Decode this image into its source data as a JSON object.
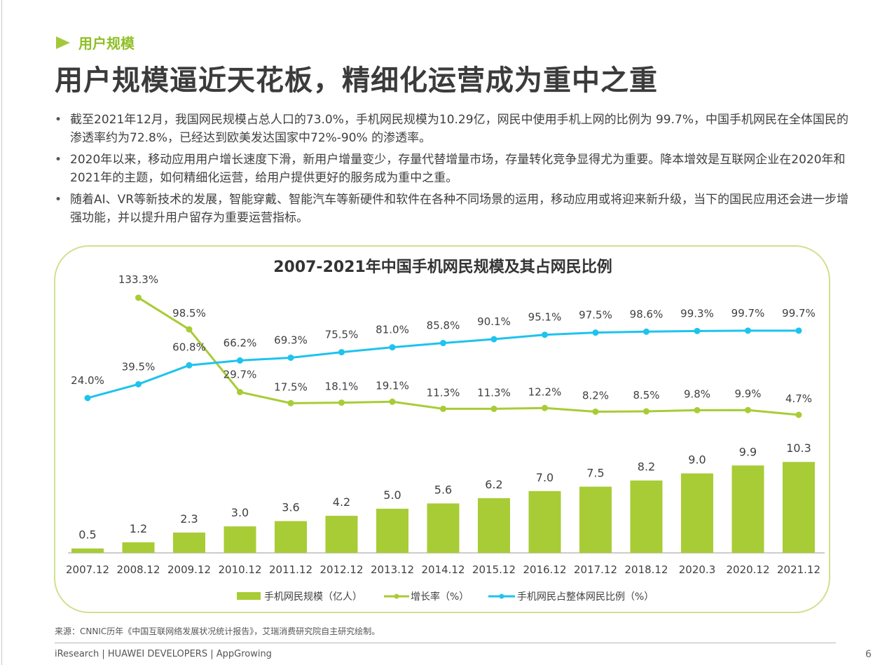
{
  "section": {
    "label": "用户规模"
  },
  "title": "用户规模逼近天花板，精细化运营成为重中之重",
  "bullets": [
    "截至2021年12月，我国网民规模占总人口的73.0%，手机网民规模为10.29亿，网民中使用手机上网的比例为 99.7%，中国手机网民在全体国民的渗透率约为72.8%，已经达到欧美发达国家中72%-90% 的渗透率。",
    "2020年以来，移动应用用户增长速度下滑，新用户增量变少，存量代替增量市场，存量转化竞争显得尤为重要。降本增效是互联网企业在2020年和2021年的主题，如何精细化运营，给用户提供更好的服务成为重中之重。",
    "随着AI、VR等新技术的发展，智能穿戴、智能汽车等新硬件和软件在各种不同场景的运用，移动应用或将迎来新升级，当下的国民应用还会进一步增强功能，并以提升用户留存为重要运营指标。"
  ],
  "chart_data": {
    "type": "bar",
    "title": "2007-2021年中国手机网民规模及其占网民比例",
    "categories": [
      "2007.12",
      "2008.12",
      "2009.12",
      "2010.12",
      "2011.12",
      "2012.12",
      "2013.12",
      "2014.12",
      "2015.12",
      "2016.12",
      "2017.12",
      "2018.12",
      "2020.3",
      "2020.12",
      "2021.12"
    ],
    "series": [
      {
        "name": "手机网民规模（亿人）",
        "kind": "bar",
        "color": "#a8cc36",
        "values": [
          0.5,
          1.2,
          2.3,
          3.0,
          3.6,
          4.2,
          5.0,
          5.6,
          6.2,
          7.0,
          7.5,
          8.2,
          9.0,
          9.9,
          10.3
        ],
        "labels": [
          "0.5",
          "1.2",
          "2.3",
          "3.0",
          "3.6",
          "4.2",
          "5.0",
          "5.6",
          "6.2",
          "7.0",
          "7.5",
          "8.2",
          "9.0",
          "9.9",
          "10.3"
        ]
      },
      {
        "name": "增长率（%）",
        "kind": "line",
        "color": "#a8cc36",
        "values": [
          null,
          133.3,
          98.5,
          29.7,
          17.5,
          18.1,
          19.1,
          11.3,
          11.3,
          12.2,
          8.2,
          8.5,
          9.8,
          9.9,
          4.7
        ],
        "labels": [
          "",
          "133.3%",
          "98.5%",
          "29.7%",
          "17.5%",
          "18.1%",
          "19.1%",
          "11.3%",
          "11.3%",
          "12.2%",
          "8.2%",
          "8.5%",
          "9.8%",
          "9.9%",
          "4.7%"
        ]
      },
      {
        "name": "手机网民占整体网民比例（%）",
        "kind": "line",
        "color": "#1ec3ee",
        "values": [
          24.0,
          39.5,
          60.8,
          66.2,
          69.3,
          75.5,
          81.0,
          85.8,
          90.1,
          95.1,
          97.5,
          98.6,
          99.3,
          99.7,
          99.7
        ],
        "labels": [
          "24.0%",
          "39.5%",
          "60.8%",
          "66.2%",
          "69.3%",
          "75.5%",
          "81.0%",
          "85.8%",
          "90.1%",
          "95.1%",
          "97.5%",
          "98.6%",
          "99.3%",
          "99.7%",
          "99.7%"
        ]
      }
    ],
    "legend_position": "bottom",
    "grid": false
  },
  "source": "来源：CNNIC历年《中国互联网络发展状况统计报告》，艾瑞消费研究院自主研究绘制。",
  "footer": {
    "left": "iResearch | HUAWEI DEVELOPERS | AppGrowing",
    "page": "6"
  }
}
